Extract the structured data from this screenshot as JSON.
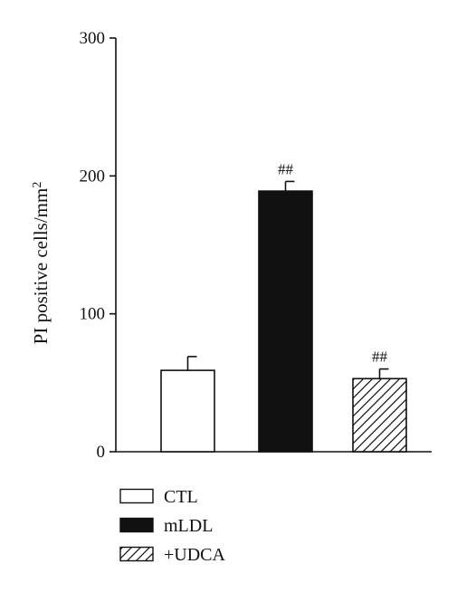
{
  "chart_data": {
    "type": "bar",
    "categories": [
      "CTL",
      "mLDL",
      "+UDCA"
    ],
    "values": [
      59,
      189,
      53
    ],
    "errors": [
      10,
      7,
      7
    ],
    "significance": [
      "",
      "##",
      "##"
    ],
    "ylabel": "PI positive cells/mm",
    "ylabel_superscript": "2",
    "ylim": [
      0,
      300
    ],
    "yticks": [
      0,
      100,
      200,
      300
    ],
    "legend": {
      "position": "bottom-left",
      "entries": [
        {
          "label": "CTL",
          "fill": "white"
        },
        {
          "label": "mLDL",
          "fill": "black"
        },
        {
          "label": "+UDCA",
          "fill": "hatched"
        }
      ]
    },
    "colors": {
      "axis": "#111111",
      "solid": "#111111",
      "open": "#ffffff"
    }
  }
}
